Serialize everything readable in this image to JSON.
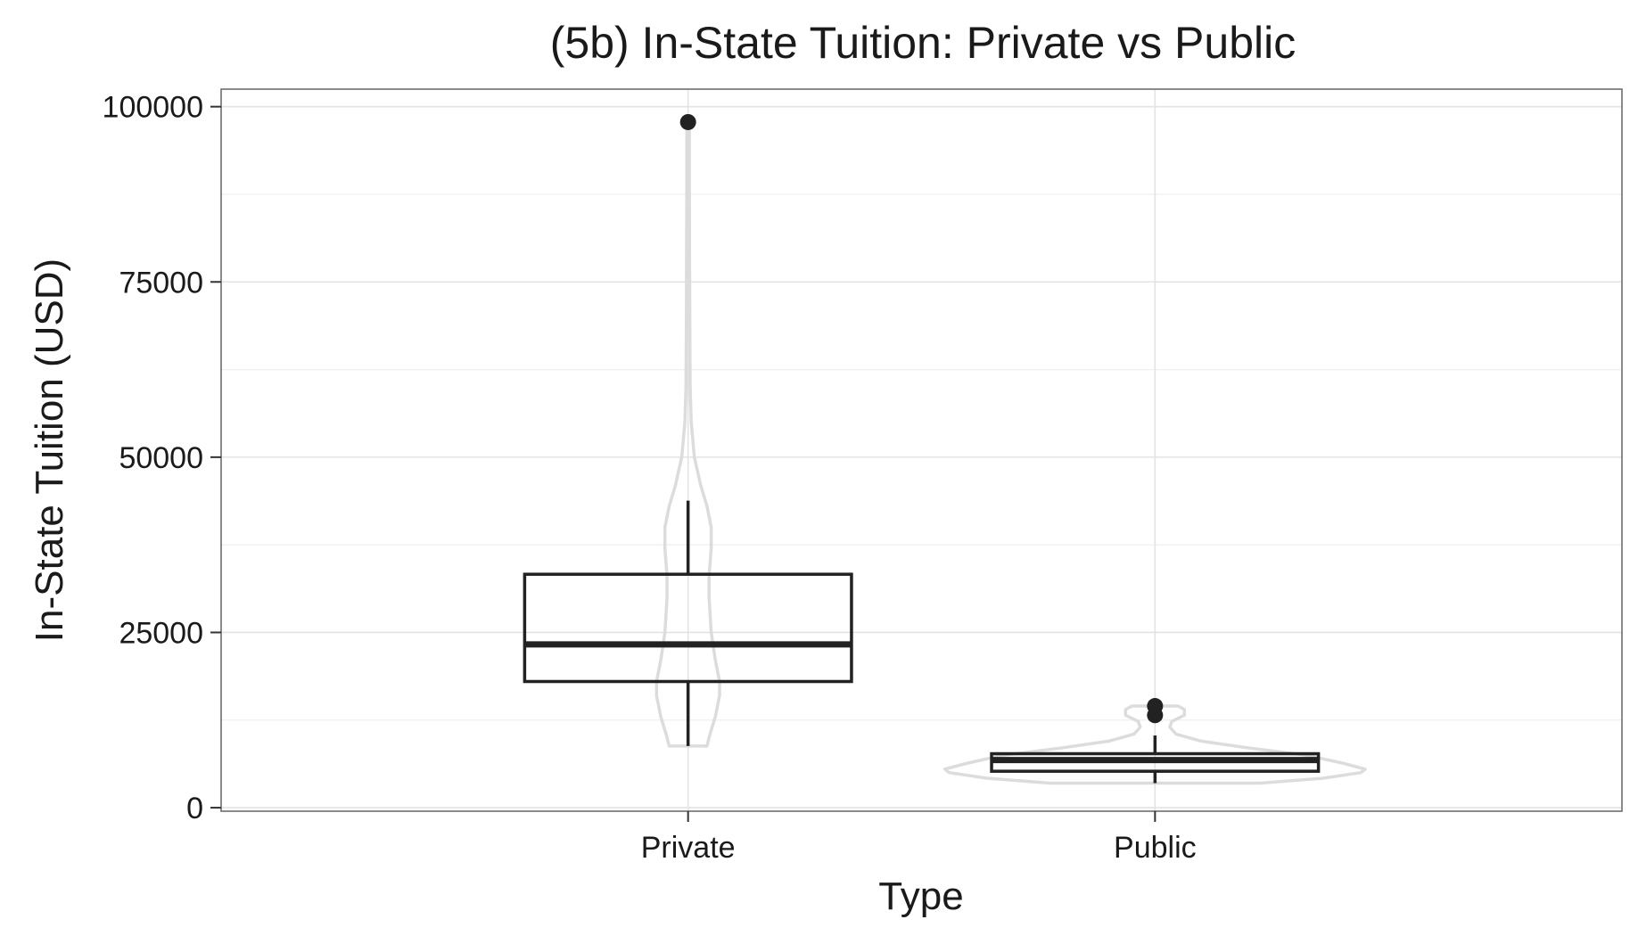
{
  "chart_data": {
    "type": "boxplot",
    "title": "(5b) In-State Tuition: Private vs Public",
    "xlabel": "Type",
    "ylabel": "In-State Tuition (USD)",
    "ylim": [
      -500,
      102500
    ],
    "yticks": [
      0,
      25000,
      50000,
      75000,
      100000
    ],
    "yticks_labels": [
      "0",
      "25000",
      "50000",
      "75000",
      "100000"
    ],
    "categories": [
      "Private",
      "Public"
    ],
    "grid": true,
    "layers": [
      "violin",
      "boxplot"
    ],
    "violin_color": "#dcdcdc",
    "box_color": "#222222",
    "groups": [
      {
        "name": "Private",
        "boxplot": {
          "min": 8800,
          "q1": 18000,
          "median": 23300,
          "q3": 33300,
          "max": 43800,
          "outliers": [
            97800
          ]
        },
        "violin": [
          {
            "y": 8800,
            "d": 0.09
          },
          {
            "y": 10000,
            "d": 0.1
          },
          {
            "y": 13000,
            "d": 0.13
          },
          {
            "y": 16000,
            "d": 0.15
          },
          {
            "y": 18000,
            "d": 0.15
          },
          {
            "y": 21000,
            "d": 0.13
          },
          {
            "y": 25000,
            "d": 0.11
          },
          {
            "y": 30000,
            "d": 0.1
          },
          {
            "y": 33000,
            "d": 0.1
          },
          {
            "y": 37000,
            "d": 0.11
          },
          {
            "y": 40000,
            "d": 0.11
          },
          {
            "y": 43000,
            "d": 0.09
          },
          {
            "y": 46000,
            "d": 0.06
          },
          {
            "y": 50000,
            "d": 0.03
          },
          {
            "y": 55000,
            "d": 0.015
          },
          {
            "y": 60000,
            "d": 0.01
          },
          {
            "y": 70000,
            "d": 0.008
          },
          {
            "y": 80000,
            "d": 0.007
          },
          {
            "y": 90000,
            "d": 0.006
          },
          {
            "y": 97800,
            "d": 0.006
          }
        ]
      },
      {
        "name": "Public",
        "boxplot": {
          "min": 3500,
          "q1": 5200,
          "median": 6800,
          "q3": 7700,
          "max": 10300,
          "outliers": [
            13200,
            14500
          ]
        },
        "violin": [
          {
            "y": 3500,
            "d": 0.5
          },
          {
            "y": 4200,
            "d": 0.8
          },
          {
            "y": 5000,
            "d": 0.98
          },
          {
            "y": 5500,
            "d": 1.0
          },
          {
            "y": 6300,
            "d": 0.9
          },
          {
            "y": 7500,
            "d": 0.72
          },
          {
            "y": 8500,
            "d": 0.45
          },
          {
            "y": 9500,
            "d": 0.22
          },
          {
            "y": 10500,
            "d": 0.1
          },
          {
            "y": 11500,
            "d": 0.07
          },
          {
            "y": 12300,
            "d": 0.08
          },
          {
            "y": 13200,
            "d": 0.14
          },
          {
            "y": 14000,
            "d": 0.14
          },
          {
            "y": 14500,
            "d": 0.11
          }
        ]
      }
    ]
  }
}
